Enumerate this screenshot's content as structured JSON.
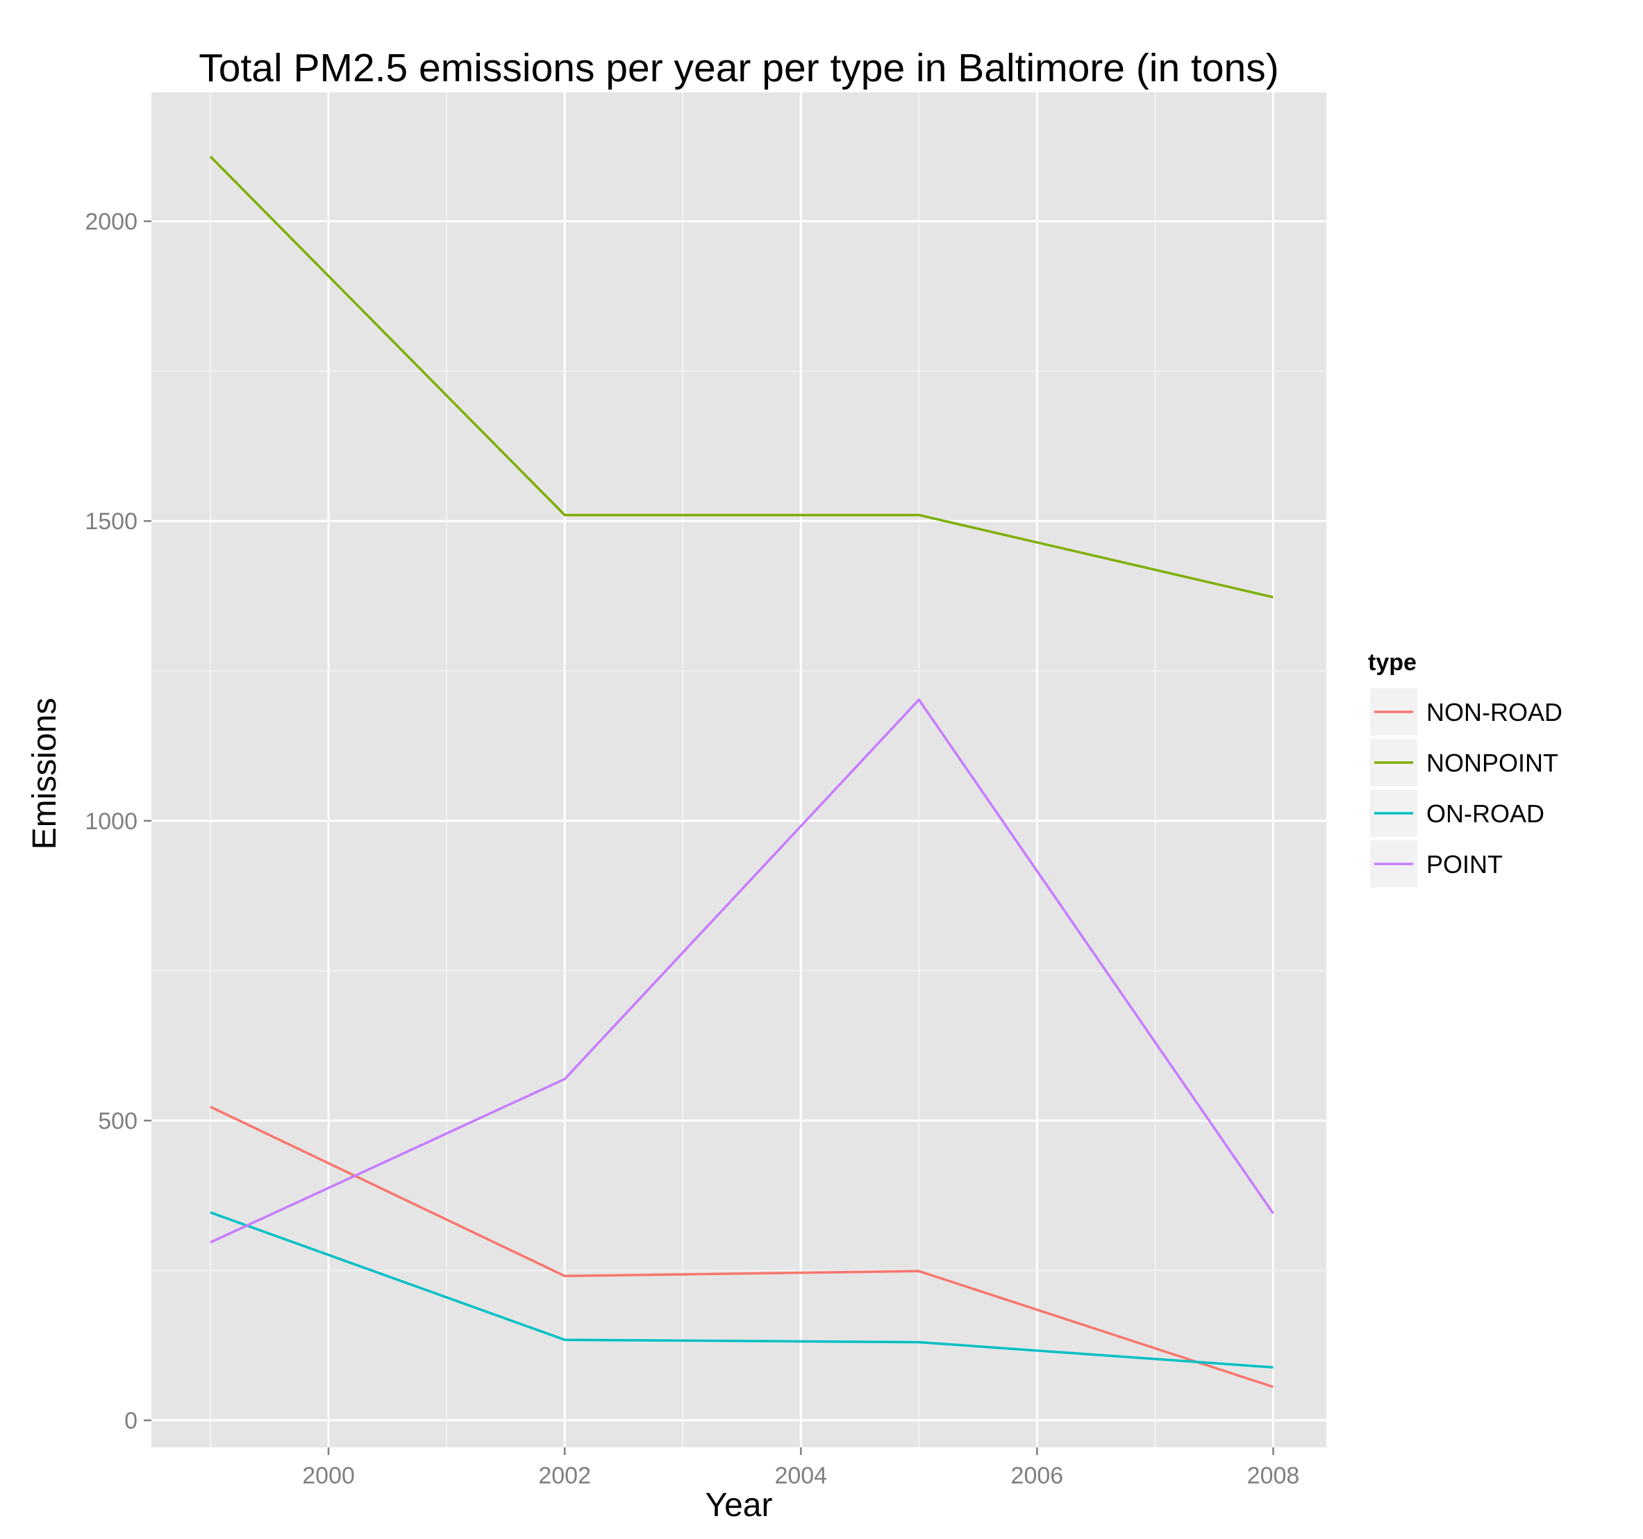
{
  "chart_data": {
    "type": "line",
    "title": "Total PM2.5 emissions per year per type in Baltimore (in tons)",
    "xlabel": "Year",
    "ylabel": "Emissions",
    "x": [
      1999,
      2002,
      2005,
      2008
    ],
    "xlim": [
      1998.5,
      2008.45
    ],
    "ylim": [
      -45,
      2215
    ],
    "x_ticks": [
      2000,
      2002,
      2004,
      2006,
      2008
    ],
    "x_minor_ticks": [
      1999,
      2001,
      2003,
      2005,
      2007
    ],
    "x_tick_labels": [
      "2000",
      "2002",
      "2004",
      "2006",
      "2008"
    ],
    "y_ticks": [
      0,
      500,
      1000,
      1500,
      2000
    ],
    "y_minor_ticks": [
      250,
      750,
      1250,
      1750
    ],
    "y_tick_labels": [
      "0",
      "500",
      "1000",
      "1500",
      "2000"
    ],
    "grid": true,
    "panel_background": "#e5e5e5",
    "grid_color": "#ffffff",
    "legend": {
      "title": "type",
      "position": "right"
    },
    "series": [
      {
        "name": "NON-ROAD",
        "color": "#f8766d",
        "values": [
          522.9,
          240.8,
          248.9,
          55.8
        ]
      },
      {
        "name": "NONPOINT",
        "color": "#7cae00",
        "values": [
          2108,
          1510,
          1510,
          1373
        ]
      },
      {
        "name": "ON-ROAD",
        "color": "#00bfc4",
        "values": [
          346.8,
          134.3,
          130.4,
          88.3
        ]
      },
      {
        "name": "POINT",
        "color": "#c77cff",
        "values": [
          296.8,
          569.3,
          1202,
          345
        ]
      }
    ]
  }
}
